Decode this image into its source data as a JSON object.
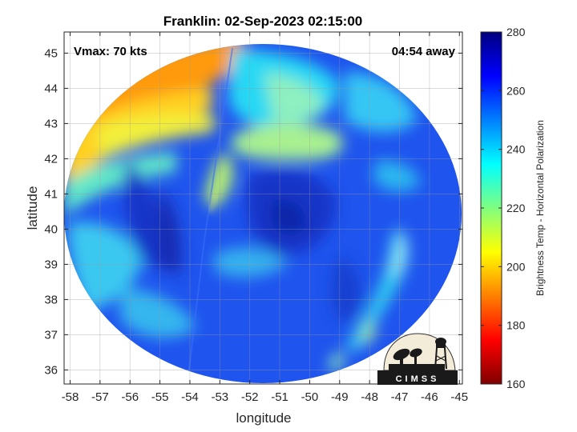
{
  "title": "Franklin: 02-Sep-2023 02:15:00",
  "annotations": {
    "vmax": "Vmax: 70 kts",
    "time_away": "04:54 away"
  },
  "axes": {
    "xlabel": "longitude",
    "ylabel": "latitude",
    "xlim": [
      -58.2,
      -44.9
    ],
    "ylim": [
      35.6,
      45.6
    ],
    "xticks": [
      "-58",
      "-57",
      "-56",
      "-55",
      "-54",
      "-53",
      "-52",
      "-51",
      "-50",
      "-49",
      "-48",
      "-47",
      "-46",
      "-45"
    ],
    "yticks": [
      "36",
      "37",
      "38",
      "39",
      "40",
      "41",
      "42",
      "43",
      "44",
      "45"
    ],
    "grid": true
  },
  "colorbar": {
    "label": "Brightness Temp - Horizontal Polarization",
    "range": [
      160,
      280
    ],
    "ticks": [
      "160",
      "180",
      "200",
      "220",
      "240",
      "260",
      "280"
    ],
    "colormap": "jet"
  },
  "logo": {
    "text": "CIMSS"
  },
  "colors": {
    "background": "#ffffff",
    "cold": "#0a1e8c",
    "mid": "#00c8ff",
    "warm": "#ff8c00"
  }
}
